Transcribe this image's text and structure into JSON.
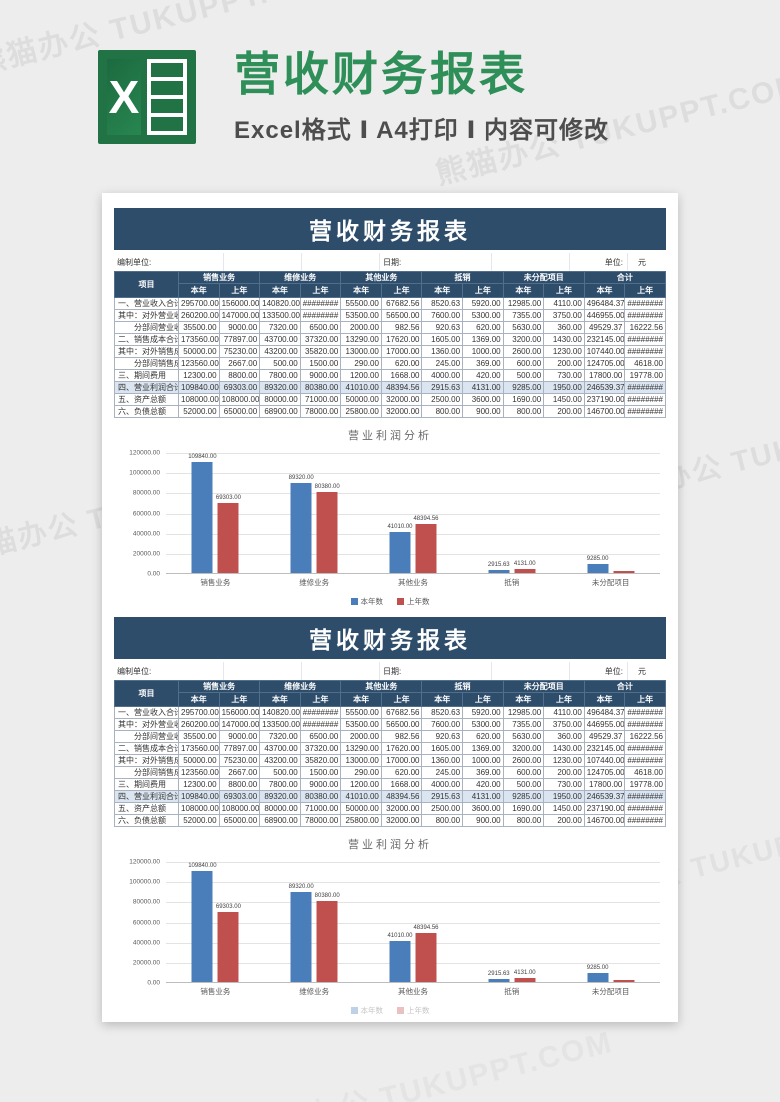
{
  "header": {
    "logo_letter": "X",
    "title": "营收财务报表",
    "subtitle": "Excel格式 Ⅰ A4打印 Ⅰ 内容可修改"
  },
  "watermark": "熊猫办公 TUKUPPT.COM",
  "colors": {
    "navy": "#2e4d6b",
    "highlight_row": "#dbe5f1",
    "bar_blue": "#4a7ebb",
    "bar_red": "#c0504d",
    "title_green": "#2e8f58"
  },
  "report": {
    "title": "营收财务报表",
    "meta": {
      "prepared_by_label": "编制单位:",
      "date_label": "日期:",
      "unit_label": "单位:",
      "unit_value": "元"
    },
    "columns": {
      "item": "项目",
      "groups": [
        "销售业务",
        "维修业务",
        "其他业务",
        "抵销",
        "未分配项目",
        "合计"
      ],
      "sub": [
        "本年",
        "上年"
      ]
    },
    "rows": [
      {
        "label": "一、营业收入合计",
        "indent": false,
        "highlight": false,
        "values": [
          "295700.00",
          "156000.00",
          "140820.00",
          "########",
          "55500.00",
          "67682.56",
          "8520.63",
          "5920.00",
          "12985.00",
          "4110.00",
          "496484.37",
          "########"
        ]
      },
      {
        "label": "其中：对外营业收入",
        "indent": false,
        "highlight": false,
        "values": [
          "260200.00",
          "147000.00",
          "133500.00",
          "########",
          "53500.00",
          "56500.00",
          "7600.00",
          "5300.00",
          "7355.00",
          "3750.00",
          "446955.00",
          "########"
        ]
      },
      {
        "label": "分部间营业收入",
        "indent": true,
        "highlight": false,
        "values": [
          "35500.00",
          "9000.00",
          "7320.00",
          "6500.00",
          "2000.00",
          "982.56",
          "920.63",
          "620.00",
          "5630.00",
          "360.00",
          "49529.37",
          "16222.56"
        ]
      },
      {
        "label": "二、销售成本合计",
        "indent": false,
        "highlight": false,
        "values": [
          "173560.00",
          "77897.00",
          "43700.00",
          "37320.00",
          "13290.00",
          "17620.00",
          "1605.00",
          "1369.00",
          "3200.00",
          "1430.00",
          "232145.00",
          "########"
        ]
      },
      {
        "label": "其中：对外销售成本",
        "indent": false,
        "highlight": false,
        "values": [
          "50000.00",
          "75230.00",
          "43200.00",
          "35820.00",
          "13000.00",
          "17000.00",
          "1360.00",
          "1000.00",
          "2600.00",
          "1230.00",
          "107440.00",
          "########"
        ]
      },
      {
        "label": "分部间销售成本",
        "indent": true,
        "highlight": false,
        "values": [
          "123560.00",
          "2667.00",
          "500.00",
          "1500.00",
          "290.00",
          "620.00",
          "245.00",
          "369.00",
          "600.00",
          "200.00",
          "124705.00",
          "4618.00"
        ]
      },
      {
        "label": "三、期间费用",
        "indent": false,
        "highlight": false,
        "values": [
          "12300.00",
          "8800.00",
          "7800.00",
          "9000.00",
          "1200.00",
          "1668.00",
          "4000.00",
          "420.00",
          "500.00",
          "730.00",
          "17800.00",
          "19778.00"
        ]
      },
      {
        "label": "四、营业利润合计",
        "indent": false,
        "highlight": true,
        "values": [
          "109840.00",
          "69303.00",
          "89320.00",
          "80380.00",
          "41010.00",
          "48394.56",
          "2915.63",
          "4131.00",
          "9285.00",
          "1950.00",
          "246539.37",
          "########"
        ]
      },
      {
        "label": "五、资产总额",
        "indent": false,
        "highlight": false,
        "values": [
          "108000.00",
          "108000.00",
          "80000.00",
          "71000.00",
          "50000.00",
          "32000.00",
          "2500.00",
          "3600.00",
          "1690.00",
          "1450.00",
          "237190.00",
          "########"
        ]
      },
      {
        "label": "六、负债总额",
        "indent": false,
        "highlight": false,
        "values": [
          "52000.00",
          "65000.00",
          "68900.00",
          "78000.00",
          "25800.00",
          "32000.00",
          "800.00",
          "900.00",
          "800.00",
          "200.00",
          "146700.00",
          "########"
        ]
      }
    ]
  },
  "chart_data": {
    "type": "bar",
    "title": "营业利润分析",
    "categories": [
      "销售业务",
      "维修业务",
      "其他业务",
      "抵销",
      "未分配项目"
    ],
    "series": [
      {
        "name": "本年数",
        "color": "#4a7ebb",
        "values": [
          109840,
          89320,
          41010,
          2915.63,
          9285
        ],
        "labels": [
          "109840.00",
          "89320.00",
          "41010.00",
          "2915.63",
          "9285.00"
        ]
      },
      {
        "name": "上年数",
        "color": "#c0504d",
        "values": [
          69303,
          80380,
          48394.56,
          4131,
          1950
        ],
        "labels": [
          "69303.00",
          "80380.00",
          "48394.56",
          "4131.00",
          ""
        ]
      }
    ],
    "ylim": [
      0,
      120000
    ],
    "yticks": [
      "120000.00",
      "100000.00",
      "80000.00",
      "60000.00",
      "40000.00",
      "20000.00",
      "0.00"
    ],
    "grid": true,
    "legend_position": "bottom"
  }
}
